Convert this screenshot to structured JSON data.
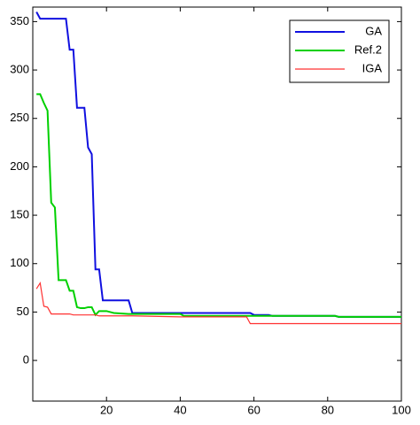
{
  "chart_data": {
    "type": "line",
    "x": [
      1,
      2,
      3,
      4,
      5,
      6,
      7,
      8,
      9,
      10,
      11,
      12,
      13,
      14,
      15,
      16,
      17,
      18,
      19,
      20,
      22,
      26,
      27,
      40,
      41,
      58,
      59,
      60,
      64,
      65,
      82,
      83,
      100
    ],
    "series": [
      {
        "name": "GA",
        "color": "#1010e0",
        "values": [
          360,
          353,
          353,
          353,
          353,
          353,
          353,
          353,
          353,
          321,
          321,
          261,
          261,
          261,
          220,
          213,
          94,
          94,
          62,
          62,
          62,
          62,
          49,
          49,
          49,
          49,
          49,
          47,
          47,
          46,
          46,
          45,
          45
        ]
      },
      {
        "name": "Ref.2",
        "color": "#00d000",
        "values": [
          275,
          275,
          266,
          258,
          163,
          158,
          83,
          83,
          83,
          72,
          72,
          55,
          54,
          54,
          55,
          55,
          47,
          51,
          51,
          51,
          49,
          48,
          48,
          48,
          46,
          46,
          46,
          46,
          46,
          46,
          46,
          45,
          45
        ]
      },
      {
        "name": "IGA",
        "color": "#ff3030",
        "values": [
          74,
          80,
          56,
          55,
          48,
          48,
          48,
          48,
          48,
          48,
          47,
          47,
          47,
          47,
          47,
          47,
          47,
          46,
          46,
          46,
          46,
          46,
          46,
          45,
          45,
          45,
          38,
          38,
          38,
          38,
          38,
          38,
          38
        ]
      }
    ],
    "xlim": [
      0,
      100
    ],
    "ylim": [
      -42,
      365
    ],
    "xticks": [
      20,
      40,
      60,
      80,
      100
    ],
    "yticks": [
      0,
      50,
      100,
      150,
      200,
      250,
      300,
      350
    ],
    "grid": false,
    "legend": "upper right"
  }
}
